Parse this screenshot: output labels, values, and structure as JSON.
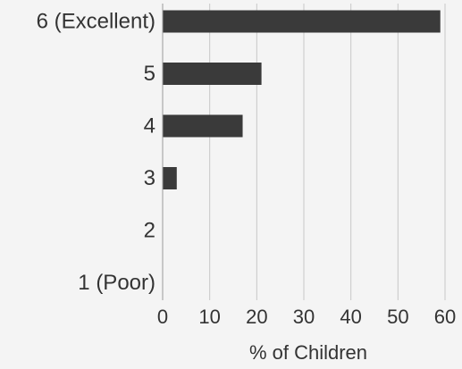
{
  "chart_data": {
    "type": "bar",
    "orientation": "horizontal",
    "categories": [
      "6 (Excellent)",
      "5",
      "4",
      "3",
      "2",
      "1 (Poor)"
    ],
    "values": [
      59,
      21,
      17,
      3,
      0,
      0
    ],
    "xlabel": "% of Children",
    "ylabel": "",
    "xlim": [
      0,
      60
    ],
    "xticks": [
      "0",
      "10",
      "20",
      "30",
      "40",
      "50",
      "60"
    ],
    "grid": "vertical",
    "legend": "none",
    "colors": {
      "bar": "#3a3a3a",
      "grid": "#c8c8c8",
      "text": "#333333",
      "background": "#f4f4f4"
    }
  }
}
